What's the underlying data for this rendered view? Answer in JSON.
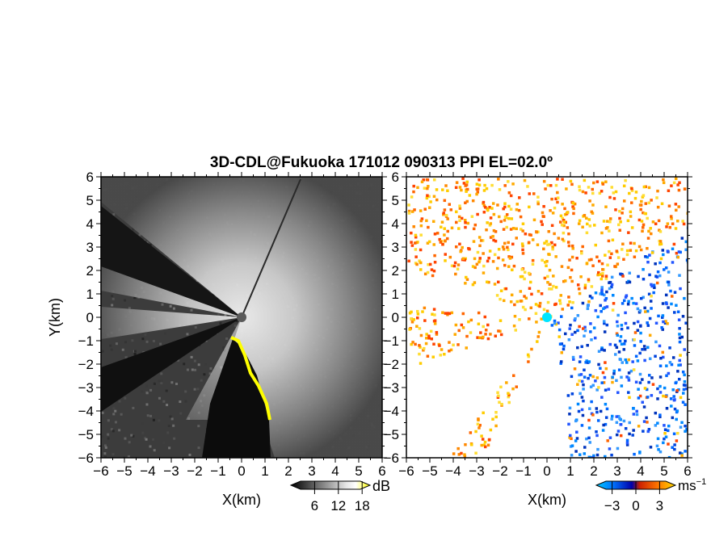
{
  "figure": {
    "title": "3D-CDL@Fukuoka 171012 090313 PPI EL=02.0º"
  },
  "chart_data": [
    {
      "type": "heatmap",
      "panel": "left",
      "xlabel": "X(km)",
      "ylabel": "Y(km)",
      "xlim": [
        -6,
        6
      ],
      "ylim": [
        -6,
        6
      ],
      "x_ticks": [
        "−6",
        "−5",
        "−4",
        "−3",
        "−2",
        "−1",
        "0",
        "1",
        "2",
        "3",
        "4",
        "5",
        "6"
      ],
      "y_ticks": [
        "−6",
        "−5",
        "−4",
        "−3",
        "−2",
        "−1",
        "0",
        "1",
        "2",
        "3",
        "4",
        "5",
        "6"
      ],
      "grid": false,
      "colorbar": {
        "unit": "dB",
        "ticks": [
          6,
          12,
          18
        ],
        "tick_labels": [
          "6",
          "12",
          "18"
        ],
        "range": [
          0,
          20
        ],
        "colors": [
          "#000000",
          "#ffffff",
          "#ffff00"
        ]
      },
      "marker_color": "#5a5a5a",
      "highlight_color": "#ffff00"
    },
    {
      "type": "heatmap",
      "panel": "right",
      "xlabel": "X(km)",
      "xlim": [
        -6,
        6
      ],
      "ylim": [
        -6,
        6
      ],
      "x_ticks": [
        "−6",
        "−5",
        "−4",
        "−3",
        "−2",
        "−1",
        "0",
        "1",
        "2",
        "3",
        "4",
        "5",
        "6"
      ],
      "y_ticks": [
        "−6",
        "−5",
        "−4",
        "−3",
        "−2",
        "−1",
        "0",
        "1",
        "2",
        "3",
        "4",
        "5",
        "6"
      ],
      "grid": false,
      "colorbar": {
        "unit_base": "ms",
        "unit_exp": "−1",
        "ticks": [
          -3,
          0,
          3
        ],
        "tick_labels": [
          "−3",
          "0",
          "3"
        ],
        "range": [
          -5,
          5
        ],
        "colors": [
          "#00ccff",
          "#0066ff",
          "#0000cc",
          "#cc3300",
          "#ff6600",
          "#ffcc00"
        ]
      },
      "marker_color": "#00e5ff"
    }
  ]
}
